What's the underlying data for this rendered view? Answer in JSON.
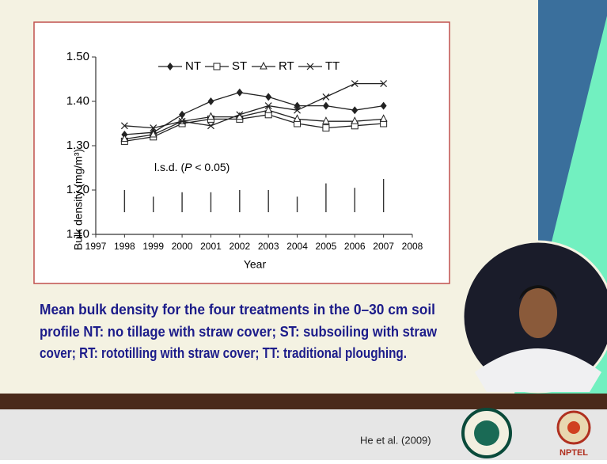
{
  "chart_data": {
    "type": "line",
    "x": [
      1998,
      1999,
      2000,
      2001,
      2002,
      2003,
      2004,
      2005,
      2006,
      2007
    ],
    "series": [
      {
        "name": "NT",
        "color": "#222222",
        "marker": "diamond",
        "values": [
          1.325,
          1.33,
          1.37,
          1.4,
          1.42,
          1.41,
          1.39,
          1.39,
          1.38,
          1.39
        ]
      },
      {
        "name": "ST",
        "color": "#222222",
        "marker": "square",
        "values": [
          1.31,
          1.32,
          1.35,
          1.36,
          1.36,
          1.37,
          1.35,
          1.34,
          1.345,
          1.35
        ]
      },
      {
        "name": "RT",
        "color": "#222222",
        "marker": "triangle",
        "values": [
          1.315,
          1.325,
          1.355,
          1.365,
          1.365,
          1.38,
          1.36,
          1.355,
          1.355,
          1.36
        ]
      },
      {
        "name": "TT",
        "color": "#222222",
        "marker": "x",
        "values": [
          1.345,
          1.34,
          1.355,
          1.345,
          1.37,
          1.39,
          1.38,
          1.41,
          1.44,
          1.44
        ]
      }
    ],
    "lsd": [
      0.05,
      0.035,
      0.045,
      0.045,
      0.05,
      0.05,
      0.035,
      0.065,
      0.055,
      0.075
    ],
    "annotation": [
      "l.s.d. (",
      "P",
      " < 0.05)"
    ],
    "x_label": "Year",
    "y_label": "Bulk density (mg/m³)",
    "xlim": [
      1997,
      2008
    ],
    "xticks": [
      1997,
      1998,
      1999,
      2000,
      2001,
      2002,
      2003,
      2004,
      2005,
      2006,
      2007,
      2008
    ],
    "ylim": [
      1.1,
      1.5
    ],
    "yticks": [
      {
        "value": 1.1,
        "label": "1.10"
      },
      {
        "value": 1.2,
        "label": "1.20"
      },
      {
        "value": 1.3,
        "label": "1.30"
      },
      {
        "value": 1.4,
        "label": "1.40"
      },
      {
        "value": 1.5,
        "label": "1.50"
      }
    ],
    "grid": false
  },
  "caption": [
    "Mean bulk density for the four treatments in the 0–30 cm soil",
    "profile NT: no tillage with straw cover; ST: subsoiling with straw",
    "cover; RT: rototilling with straw cover; TT: traditional ploughing."
  ],
  "citation": "He et al. (2009)",
  "logo_text": "NPTEL"
}
